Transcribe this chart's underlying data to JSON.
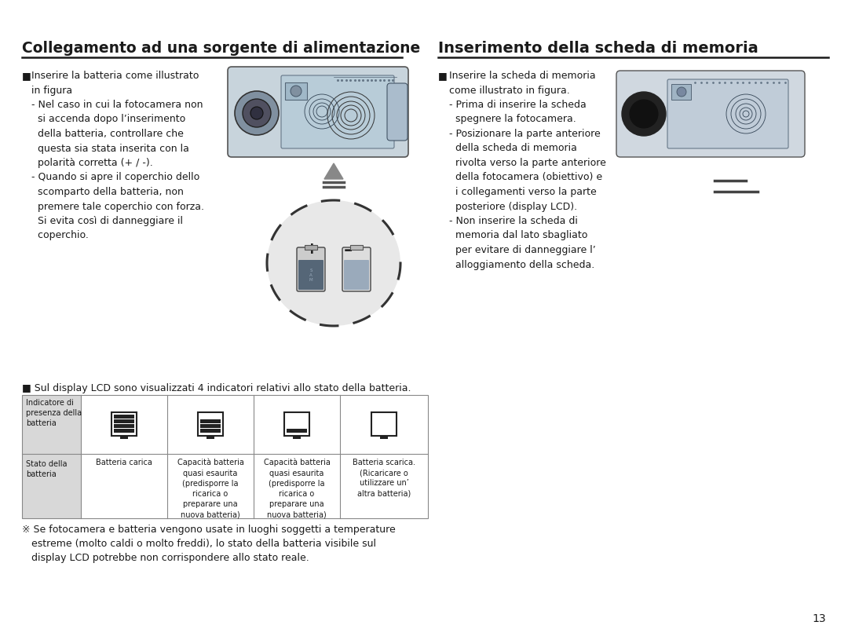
{
  "bg_color": "#ffffff",
  "page_number": "13",
  "left_title": "Collegamento ad una sorgente di alimentazione",
  "right_title": "Inserimento della scheda di memoria",
  "battery_note": "■ Sul display LCD sono visualizzati 4 indicatori relativi allo stato della batteria.",
  "table_col1_row1": "Indicatore di\npresenza della\nbatteria",
  "table_col1_row2": "Stato della\nbatteria",
  "table_col2_row2": "Batteria carica",
  "table_col3_row2": "Capacità batteria\nquasi esaurita\n(predisporre la\nricarica o\npreparare una\nnuova batteria)",
  "table_col4_row2": "Capacità batteria\nquasi esaurita\n(predisporre la\nricarica o\npreparare una\nnuova batteria)",
  "table_col5_row2": "Batteria scarica.\n(Ricaricare o\nutilizzare un’\naltra batteria)",
  "footer_note": "※ Se fotocamera e batteria vengono usate in luoghi soggetti a temperature\n   estreme (molto caldi o molto freddi), lo stato della batteria visibile sul\n   display LCD potrebbe non corrispondere allo stato reale."
}
